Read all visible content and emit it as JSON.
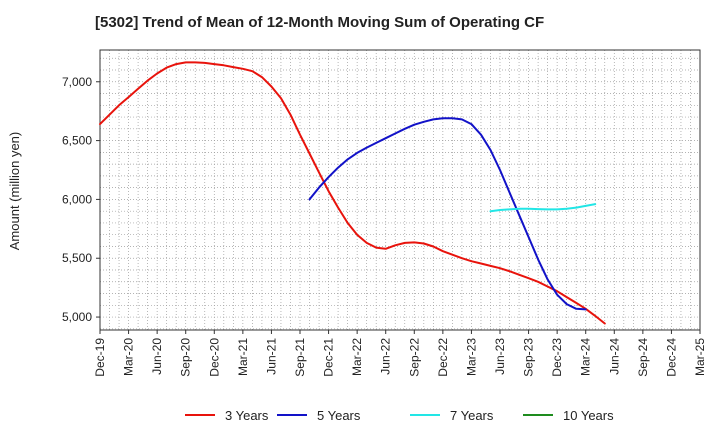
{
  "chart_data": {
    "type": "line",
    "title": "[5302]  Trend of Mean of 12-Month Moving Sum of Operating CF",
    "xlabel": "",
    "ylabel": "Amount (million yen)",
    "ylim": [
      4890,
      7270
    ],
    "yticks": [
      5000,
      5500,
      6000,
      6500,
      7000
    ],
    "ytick_labels": [
      "5,000",
      "5,500",
      "6,000",
      "6,500",
      "7,000"
    ],
    "x_tick_labels": [
      "Dec-19",
      "Mar-20",
      "Jun-20",
      "Sep-20",
      "Dec-20",
      "Mar-21",
      "Jun-21",
      "Sep-21",
      "Dec-21",
      "Mar-22",
      "Jun-22",
      "Sep-22",
      "Dec-22",
      "Mar-23",
      "Jun-23",
      "Sep-23",
      "Dec-23",
      "Mar-24",
      "Jun-24",
      "Sep-24",
      "Dec-24",
      "Mar-25"
    ],
    "grid": true,
    "legend_position": "bottom",
    "series": [
      {
        "name": "3 Years",
        "color": "#e8130c",
        "values": [
          6640,
          6720,
          6800,
          6870,
          6940,
          7010,
          7070,
          7120,
          7150,
          7165,
          7165,
          7160,
          7150,
          7140,
          7125,
          7110,
          7090,
          7040,
          6960,
          6860,
          6720,
          6550,
          6390,
          6230,
          6070,
          5930,
          5800,
          5700,
          5630,
          5590,
          5580,
          5610,
          5630,
          5635,
          5625,
          5600,
          5560,
          5530,
          5500,
          5475,
          5455,
          5435,
          5415,
          5390,
          5360,
          5330,
          5300,
          5260,
          5220,
          5170,
          5120,
          5070,
          5010,
          4945
        ]
      },
      {
        "name": "5 Years",
        "color": "#1212c8",
        "values": [
          null,
          null,
          null,
          null,
          null,
          null,
          null,
          null,
          null,
          null,
          null,
          null,
          null,
          null,
          null,
          null,
          null,
          null,
          null,
          null,
          null,
          null,
          6000,
          6100,
          6190,
          6270,
          6340,
          6395,
          6440,
          6480,
          6520,
          6560,
          6600,
          6635,
          6660,
          6680,
          6690,
          6690,
          6680,
          6640,
          6550,
          6420,
          6250,
          6060,
          5870,
          5680,
          5490,
          5320,
          5190,
          5110,
          5070,
          5065
        ]
      },
      {
        "name": "7 Years",
        "color": "#22e6e6",
        "values": [
          null,
          null,
          null,
          null,
          null,
          null,
          null,
          null,
          null,
          null,
          null,
          null,
          null,
          null,
          null,
          null,
          null,
          null,
          null,
          null,
          null,
          null,
          null,
          null,
          null,
          null,
          null,
          null,
          null,
          null,
          null,
          null,
          null,
          null,
          null,
          null,
          null,
          null,
          null,
          null,
          null,
          5900,
          5910,
          5915,
          5920,
          5920,
          5918,
          5915,
          5915,
          5920,
          5930,
          5945,
          5960
        ]
      },
      {
        "name": "10 Years",
        "color": "#1e8c1e",
        "values": []
      }
    ]
  }
}
